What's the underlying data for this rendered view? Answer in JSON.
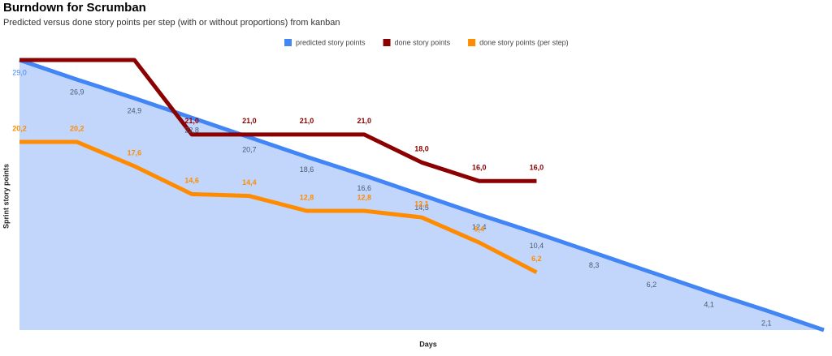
{
  "chart_data": {
    "type": "line",
    "title": "Burndown for Scrumban",
    "subtitle": "Predicted versus done story points per step (with or without proportions) from kanban",
    "x_label": "Days",
    "y_label": "Sprint story points",
    "legend": "top",
    "categories": [
      null,
      null,
      null,
      null,
      null,
      null,
      null,
      null,
      null,
      null,
      null,
      null,
      null,
      null,
      null
    ],
    "ylim": [
      0,
      29
    ],
    "area_under": "predicted story points",
    "series": [
      {
        "name": "predicted story points",
        "color": "#4285f4",
        "values": [
          29.0,
          26.9,
          24.9,
          22.8,
          20.7,
          18.6,
          16.6,
          14.5,
          12.4,
          10.4,
          8.3,
          6.2,
          4.1,
          2.1,
          0
        ],
        "value_labels": [
          "29,0",
          "26,9",
          "24,9",
          "22,8",
          "20,7",
          "18,6",
          "16,6",
          "14,5",
          "12,4",
          "10,4",
          "8,3",
          "6,2",
          "4,1",
          "2,1",
          null
        ]
      },
      {
        "name": "done story points",
        "color": "#8b0000",
        "values": [
          29,
          29,
          29,
          21.0,
          21.0,
          21.0,
          21.0,
          18.0,
          16.0,
          16.0,
          null,
          null,
          null,
          null,
          null
        ],
        "value_labels": [
          null,
          null,
          null,
          "21,0",
          "21,0",
          "21,0",
          "21,0",
          "18,0",
          "16,0",
          "16,0",
          null,
          null,
          null,
          null,
          null
        ]
      },
      {
        "name": "done story points (per step)",
        "color": "#ff8c00",
        "values": [
          20.2,
          20.2,
          17.6,
          14.6,
          14.4,
          12.8,
          12.8,
          12.1,
          9.4,
          6.2,
          null,
          null,
          null,
          null,
          null
        ],
        "value_labels": [
          "20,2",
          "20,2",
          "17,6",
          "14,6",
          "14,4",
          "12,8",
          "12,8",
          "12,1",
          "9,4",
          "6,2",
          null,
          null,
          null,
          null,
          null
        ]
      }
    ]
  }
}
